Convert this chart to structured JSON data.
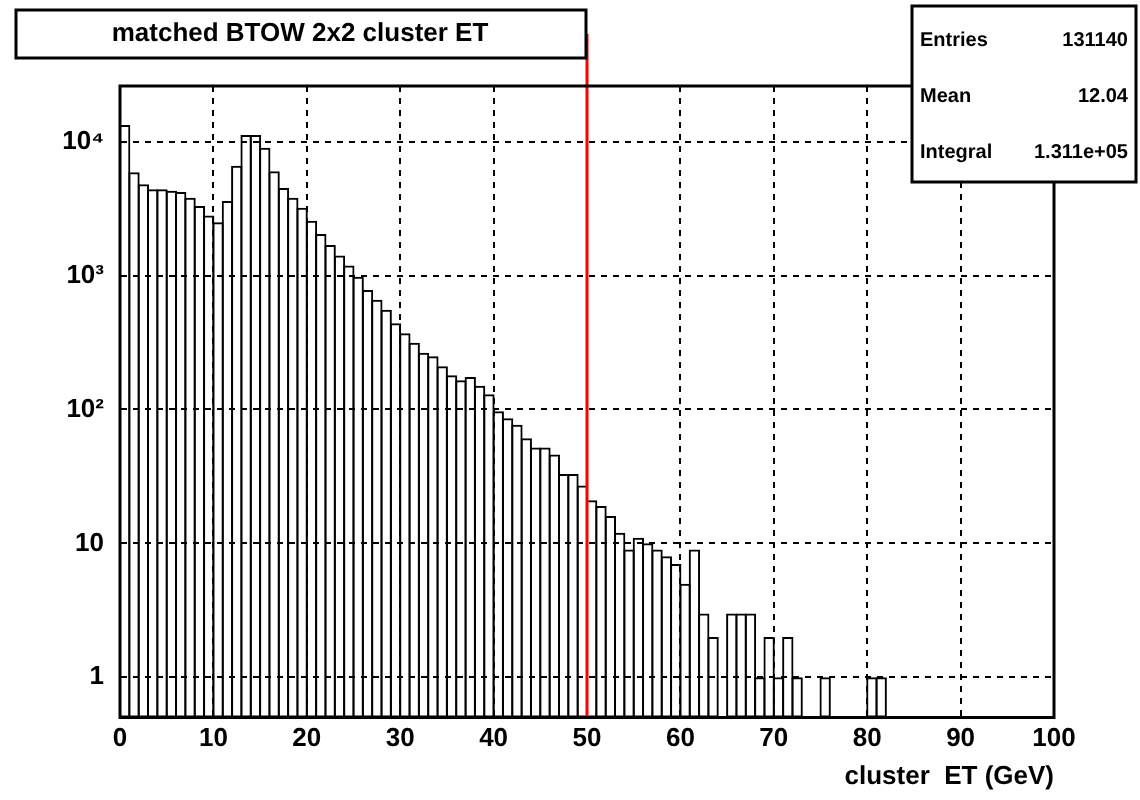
{
  "chart_data": {
    "type": "histogram",
    "title": "matched BTOW 2x2 cluster ET",
    "xlabel": "cluster  ET (GeV)",
    "bins": [
      0,
      1,
      2,
      3,
      4,
      5,
      6,
      7,
      8,
      9,
      10,
      11,
      12,
      13,
      14,
      15,
      16,
      17,
      18,
      19,
      20,
      21,
      22,
      23,
      24,
      25,
      26,
      27,
      28,
      29,
      30,
      31,
      32,
      33,
      34,
      35,
      36,
      37,
      38,
      39,
      40,
      41,
      42,
      43,
      44,
      45,
      46,
      47,
      48,
      49,
      50,
      51,
      52,
      53,
      54,
      55,
      56,
      57,
      58,
      59,
      60,
      61,
      62,
      63,
      64,
      65,
      66,
      67,
      68,
      69,
      70,
      71,
      72,
      73,
      74,
      75,
      76,
      77,
      78,
      79,
      80,
      81,
      82,
      83,
      84,
      85,
      86,
      87,
      88,
      89,
      90,
      91,
      92,
      93,
      94,
      95,
      96,
      97,
      98,
      99,
      100
    ],
    "values": [
      13300,
      5900,
      4800,
      4400,
      4400,
      4300,
      4200,
      3800,
      3300,
      2800,
      2500,
      3600,
      6600,
      11200,
      11200,
      9000,
      6000,
      4500,
      3800,
      3200,
      2560,
      2040,
      1690,
      1410,
      1190,
      980,
      780,
      660,
      555,
      440,
      370,
      315,
      265,
      250,
      210,
      180,
      165,
      175,
      150,
      130,
      97,
      86,
      77,
      61,
      52,
      52,
      46,
      33,
      33,
      27,
      21,
      19,
      16,
      12,
      9,
      11,
      10,
      9,
      8,
      7,
      5,
      9,
      3,
      2,
      null,
      3,
      3,
      3,
      1,
      2,
      1,
      2,
      1,
      null,
      null,
      1,
      null,
      null,
      null,
      null,
      1,
      1,
      null,
      null,
      null,
      null,
      null,
      null,
      null,
      null,
      null,
      null,
      null,
      null,
      null,
      null,
      null,
      null,
      null,
      null
    ],
    "color": "#000000",
    "log": "y",
    "grid": true,
    "legend": false,
    "xlim": [
      0,
      100
    ],
    "xticks": [
      0,
      10,
      20,
      30,
      40,
      50,
      60,
      70,
      80,
      90,
      100
    ],
    "ylim": [
      0.5,
      26000
    ],
    "yticks": [
      1,
      10,
      {
        "value": 100,
        "label": "10²"
      },
      {
        "value": 1000,
        "label": "10³"
      },
      {
        "value": 10000,
        "label": "10⁴"
      }
    ],
    "ref_lines": [
      {
        "axis": "x",
        "value": 50,
        "color": "#ff0000"
      }
    ],
    "annotations": [
      "Entries 131140",
      "Mean 12.04",
      "Integral 1.311e+05"
    ]
  }
}
